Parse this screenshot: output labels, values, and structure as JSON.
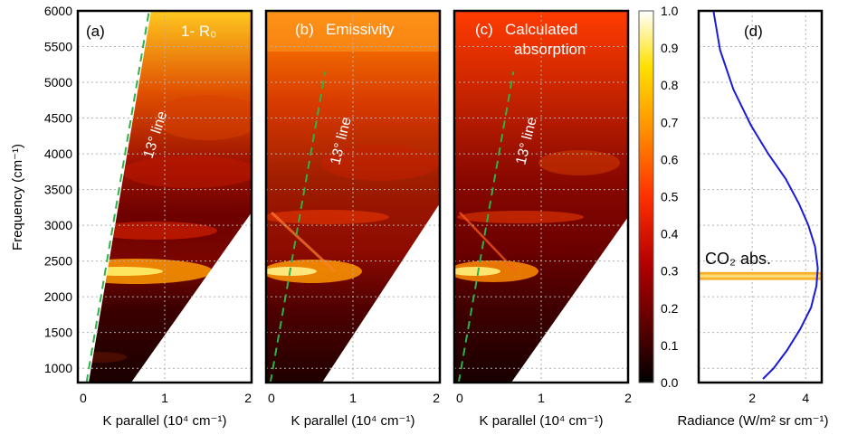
{
  "figure": {
    "ylabel": "Frequency (cm⁻¹)",
    "panels": {
      "a": {
        "letter": "(a)",
        "title": "1- R₀",
        "xlabel": "K parallel (10⁴ cm⁻¹)",
        "line_label": "13° line"
      },
      "b": {
        "letter": "(b)",
        "title": "Emissivity",
        "xlabel": "K parallel (10⁴ cm⁻¹)",
        "line_label": "13° line"
      },
      "c": {
        "letter": "(c)",
        "title_line1": "Calculated",
        "title_line2": "absorption",
        "xlabel": "K parallel (10⁴ cm⁻¹)",
        "line_label": "13° line"
      },
      "d": {
        "letter": "(d)",
        "xlabel": "Radiance (W/m² sr cm⁻¹)",
        "annotation": "CO₂ abs."
      }
    }
  },
  "chart_data": [
    {
      "panel": "a",
      "type": "heatmap",
      "title": "1- R0",
      "xlabel": "K parallel (10^4 cm^-1)",
      "ylabel": "Frequency (cm^-1)",
      "xlim": [
        0,
        2
      ],
      "ylim": [
        800,
        6000
      ],
      "xticks": [
        0,
        1,
        2
      ],
      "yticks": [
        1000,
        1500,
        2000,
        2500,
        3000,
        3500,
        4000,
        4500,
        5000,
        5500,
        6000
      ],
      "grid": true,
      "line": {
        "label": "13° line",
        "points": [
          [
            0.1,
            800
          ],
          [
            0.82,
            6000
          ]
        ]
      }
    },
    {
      "panel": "b",
      "type": "heatmap",
      "title": "Emissivity",
      "xlabel": "K parallel (10^4 cm^-1)",
      "xlim": [
        0,
        2
      ],
      "ylim": [
        800,
        6000
      ],
      "xticks": [
        0,
        1,
        2
      ],
      "grid": true,
      "line": {
        "label": "13° line",
        "points": [
          [
            0.05,
            800
          ],
          [
            0.68,
            5150
          ]
        ]
      }
    },
    {
      "panel": "c",
      "type": "heatmap",
      "title": "Calculated absorption",
      "xlabel": "K parallel (10^4 cm^-1)",
      "xlim": [
        0,
        2
      ],
      "ylim": [
        800,
        6000
      ],
      "xticks": [
        0,
        1,
        2
      ],
      "grid": true,
      "line": {
        "label": "13° line",
        "points": [
          [
            0.05,
            800
          ],
          [
            0.68,
            5150
          ]
        ]
      }
    },
    {
      "panel": "colorbar",
      "type": "colorbar",
      "range": [
        0,
        1
      ],
      "ticks": [
        "0.0",
        "0.1",
        "0.2",
        "0.3",
        "0.4",
        "0.5",
        "0.6",
        "0.7",
        "0.8",
        "0.9",
        "1.0"
      ],
      "colormap": [
        "#000000",
        "#5a0000",
        "#b40000",
        "#ff3000",
        "#ff9000",
        "#ffe000",
        "#ffffff"
      ]
    },
    {
      "panel": "d",
      "type": "line",
      "xlabel": "Radiance (W/m^2 sr cm^-1)",
      "xlim": [
        0,
        4.6
      ],
      "ylim": [
        800,
        6000
      ],
      "xticks": [
        2,
        4
      ],
      "series": [
        {
          "color": "#1a1ad8",
          "x": [
            2.4,
            2.8,
            3.3,
            3.8,
            4.2,
            4.4,
            4.45,
            4.35,
            4.1,
            3.75,
            3.25,
            2.6,
            1.95,
            1.3,
            0.8,
            0.55
          ],
          "y": [
            850,
            1000,
            1250,
            1550,
            1850,
            2150,
            2400,
            2700,
            3000,
            3300,
            3650,
            4000,
            4400,
            4900,
            5450,
            6000
          ]
        }
      ],
      "band": {
        "ymin": 2260,
        "ymax": 2320,
        "color": "#f5a623"
      }
    }
  ]
}
